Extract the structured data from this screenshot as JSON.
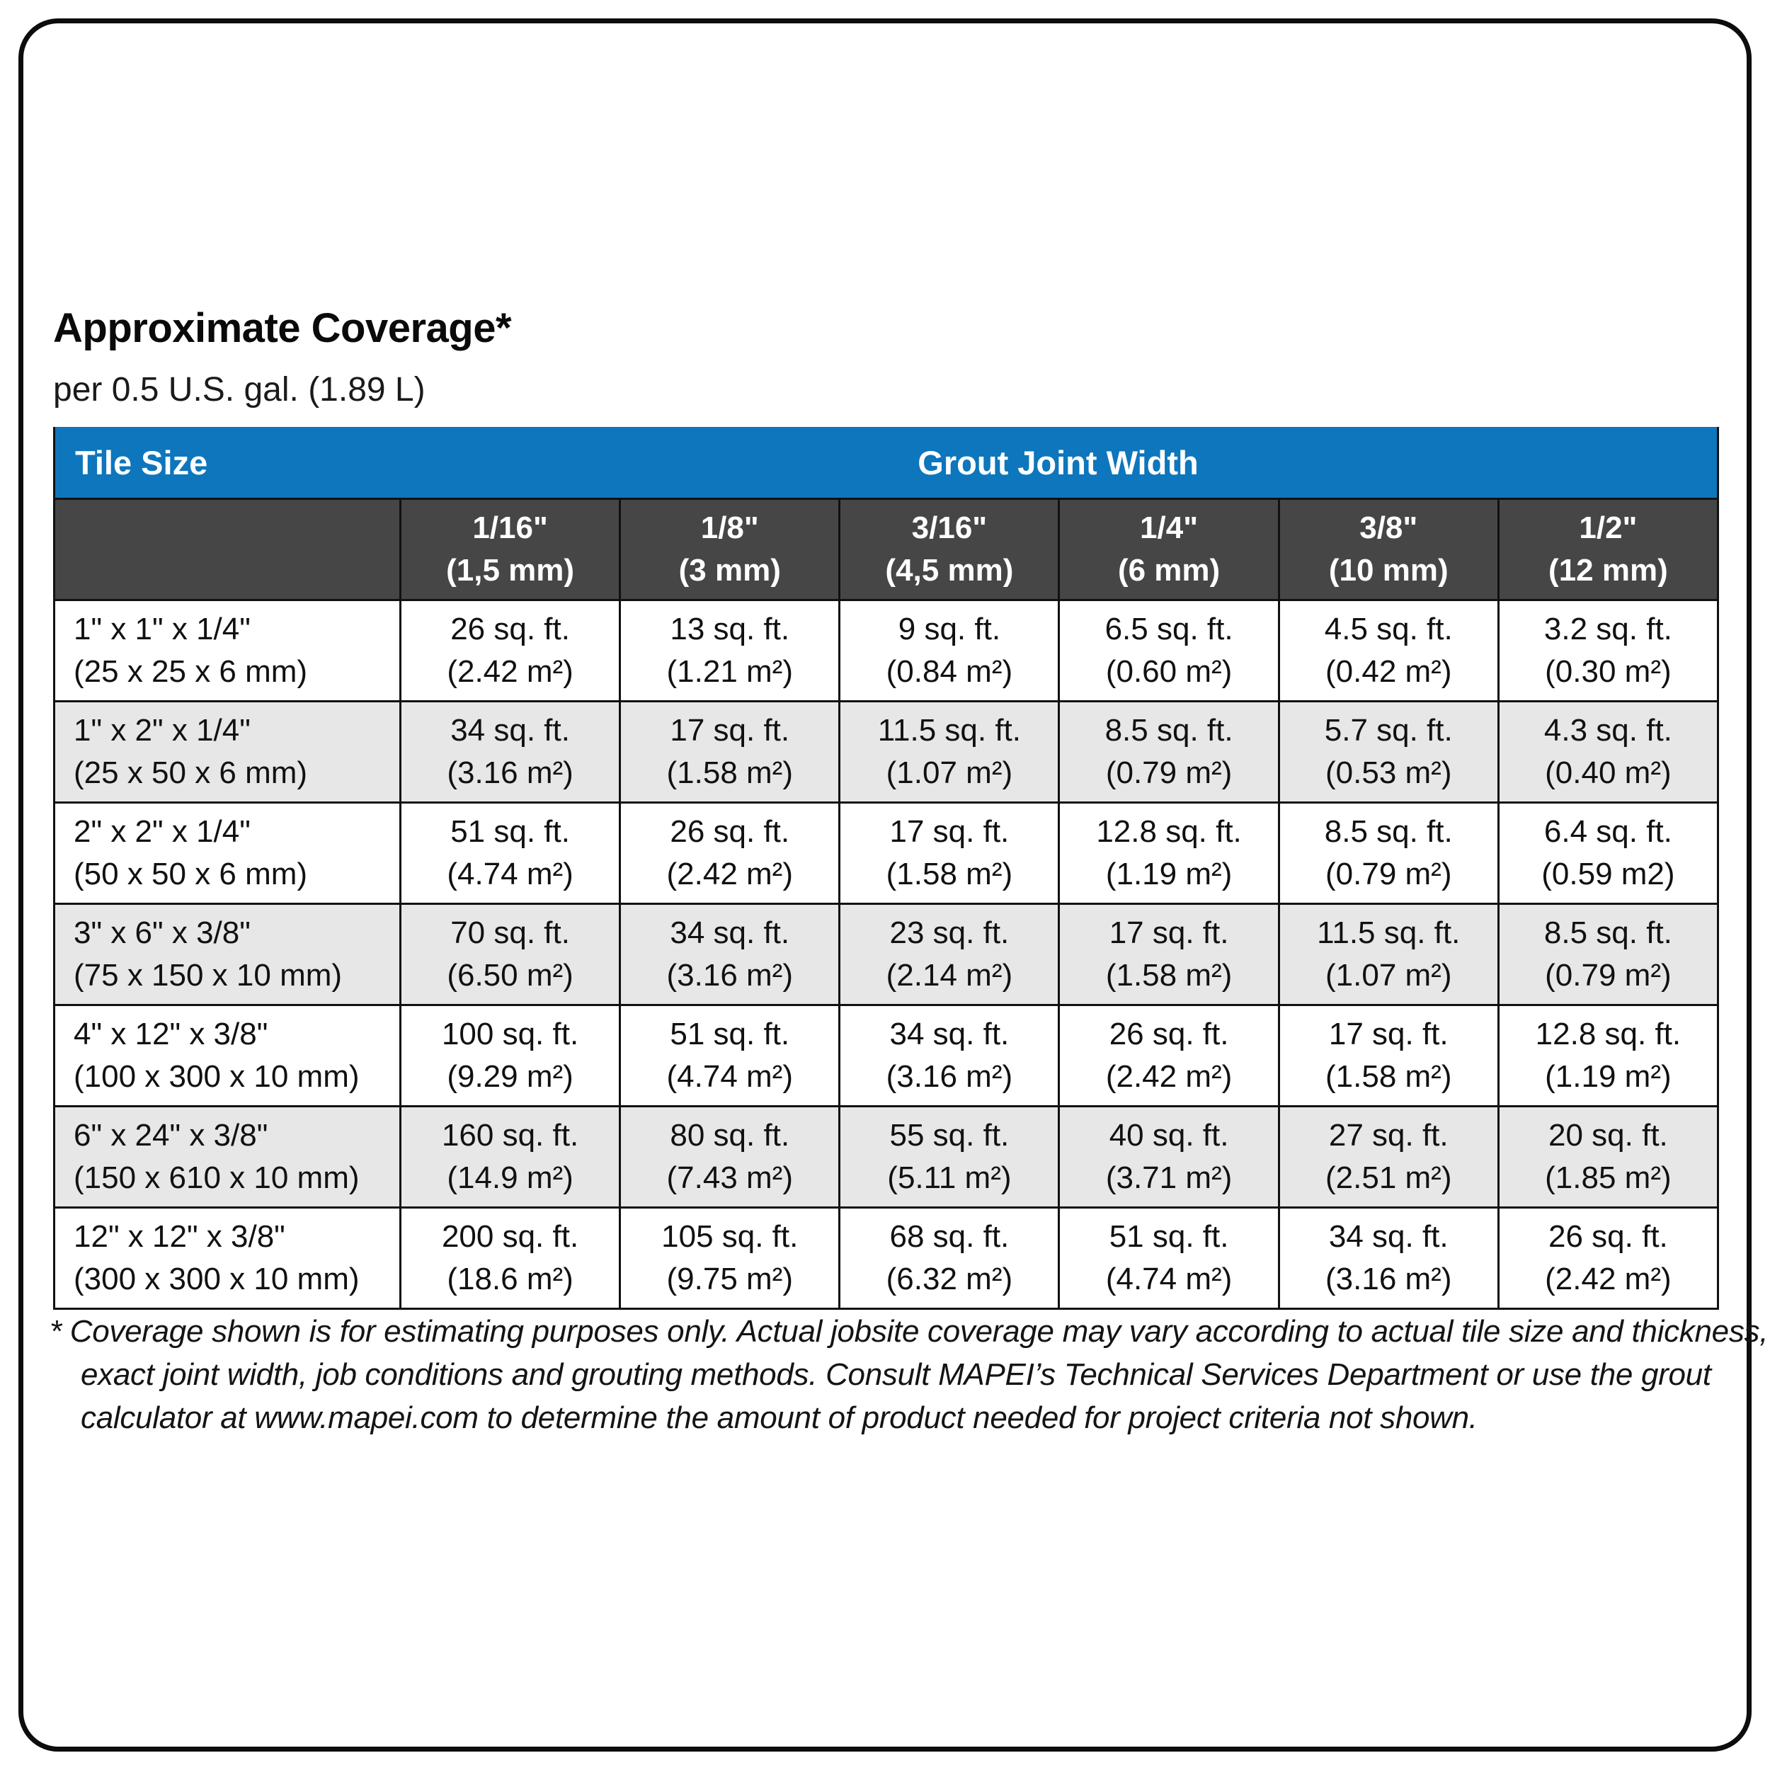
{
  "page": {
    "title": "Approximate Coverage*",
    "subtitle": "per 0.5 U.S. gal. (1.89 L)"
  },
  "colors": {
    "header_blue": "#0d76bc",
    "header_dark_gray": "#464646",
    "row_alt_gray": "#e7e7e7",
    "grid_line": "#111111"
  },
  "table": {
    "corner_label": "Tile Size",
    "group_header": "Grout Joint Width",
    "columns": [
      {
        "line1": "1/16\"",
        "line2": "(1,5 mm)"
      },
      {
        "line1": "1/8\"",
        "line2": "(3 mm)"
      },
      {
        "line1": "3/16\"",
        "line2": "(4,5 mm)"
      },
      {
        "line1": "1/4\"",
        "line2": "(6 mm)"
      },
      {
        "line1": "3/8\"",
        "line2": "(10 mm)"
      },
      {
        "line1": "1/2\"",
        "line2": "(12 mm)"
      }
    ],
    "rows": [
      {
        "tile_line1": "1\" x 1\" x 1/4\"",
        "tile_line2": "(25 x 25 x 6 mm)",
        "cells": [
          {
            "sqft": "26 sq. ft.",
            "m2": "(2.42 m²)"
          },
          {
            "sqft": "13 sq. ft.",
            "m2": "(1.21 m²)"
          },
          {
            "sqft": "9 sq. ft.",
            "m2": "(0.84 m²)"
          },
          {
            "sqft": "6.5 sq. ft.",
            "m2": "(0.60 m²)"
          },
          {
            "sqft": "4.5 sq. ft.",
            "m2": "(0.42 m²)"
          },
          {
            "sqft": "3.2 sq. ft.",
            "m2": "(0.30 m²)"
          }
        ]
      },
      {
        "tile_line1": "1\" x 2\" x 1/4\"",
        "tile_line2": "(25 x 50 x 6 mm)",
        "cells": [
          {
            "sqft": "34 sq. ft.",
            "m2": "(3.16 m²)"
          },
          {
            "sqft": "17 sq. ft.",
            "m2": "(1.58 m²)"
          },
          {
            "sqft": "11.5 sq. ft.",
            "m2": "(1.07 m²)"
          },
          {
            "sqft": "8.5 sq. ft.",
            "m2": "(0.79 m²)"
          },
          {
            "sqft": "5.7 sq. ft.",
            "m2": "(0.53 m²)"
          },
          {
            "sqft": "4.3 sq. ft.",
            "m2": "(0.40 m²)"
          }
        ]
      },
      {
        "tile_line1": "2\" x 2\" x 1/4\"",
        "tile_line2": "(50 x 50 x 6 mm)",
        "cells": [
          {
            "sqft": "51 sq. ft.",
            "m2": "(4.74 m²)"
          },
          {
            "sqft": "26 sq. ft.",
            "m2": "(2.42 m²)"
          },
          {
            "sqft": "17 sq. ft.",
            "m2": "(1.58 m²)"
          },
          {
            "sqft": "12.8 sq. ft.",
            "m2": "(1.19 m²)"
          },
          {
            "sqft": "8.5 sq. ft.",
            "m2": "(0.79 m²)"
          },
          {
            "sqft": "6.4 sq. ft.",
            "m2": "(0.59 m2)"
          }
        ]
      },
      {
        "tile_line1": "3\" x 6\" x 3/8\"",
        "tile_line2": "(75 x 150 x 10 mm)",
        "cells": [
          {
            "sqft": "70 sq. ft.",
            "m2": "(6.50 m²)"
          },
          {
            "sqft": "34 sq. ft.",
            "m2": "(3.16 m²)"
          },
          {
            "sqft": "23 sq. ft.",
            "m2": "(2.14 m²)"
          },
          {
            "sqft": "17 sq. ft.",
            "m2": "(1.58 m²)"
          },
          {
            "sqft": "11.5 sq. ft.",
            "m2": "(1.07 m²)"
          },
          {
            "sqft": "8.5 sq. ft.",
            "m2": "(0.79 m²)"
          }
        ]
      },
      {
        "tile_line1": "4\" x 12\" x 3/8\"",
        "tile_line2": "(100 x 300 x 10 mm)",
        "cells": [
          {
            "sqft": "100 sq. ft.",
            "m2": "(9.29 m²)"
          },
          {
            "sqft": "51 sq. ft.",
            "m2": "(4.74 m²)"
          },
          {
            "sqft": "34 sq. ft.",
            "m2": "(3.16 m²)"
          },
          {
            "sqft": "26 sq. ft.",
            "m2": "(2.42 m²)"
          },
          {
            "sqft": "17 sq. ft.",
            "m2": "(1.58 m²)"
          },
          {
            "sqft": "12.8 sq. ft.",
            "m2": "(1.19 m²)"
          }
        ]
      },
      {
        "tile_line1": "6\" x 24\" x 3/8\"",
        "tile_line2": "(150 x 610 x 10 mm)",
        "cells": [
          {
            "sqft": "160 sq. ft.",
            "m2": "(14.9 m²)"
          },
          {
            "sqft": "80 sq. ft.",
            "m2": "(7.43 m²)"
          },
          {
            "sqft": "55 sq. ft.",
            "m2": "(5.11 m²)"
          },
          {
            "sqft": "40 sq. ft.",
            "m2": "(3.71 m²)"
          },
          {
            "sqft": "27 sq. ft.",
            "m2": "(2.51 m²)"
          },
          {
            "sqft": "20 sq. ft.",
            "m2": "(1.85 m²)"
          }
        ]
      },
      {
        "tile_line1": "12\" x 12\" x 3/8\"",
        "tile_line2": "(300 x 300 x 10 mm)",
        "cells": [
          {
            "sqft": "200 sq. ft.",
            "m2": "(18.6 m²)"
          },
          {
            "sqft": "105 sq. ft.",
            "m2": "(9.75 m²)"
          },
          {
            "sqft": "68 sq. ft.",
            "m2": "(6.32 m²)"
          },
          {
            "sqft": "51 sq. ft.",
            "m2": "(4.74 m²)"
          },
          {
            "sqft": "34 sq. ft.",
            "m2": "(3.16 m²)"
          },
          {
            "sqft": "26 sq. ft.",
            "m2": "(2.42 m²)"
          }
        ]
      }
    ]
  },
  "footnote": {
    "marker": "*",
    "text": "Coverage shown is for estimating purposes only. Actual jobsite coverage may vary according to actual tile size and thickness, exact joint width, job conditions and grouting methods. Consult MAPEI’s Technical Services Department or use the grout calculator at www.mapei.com to determine the amount of product needed for project criteria not shown."
  }
}
